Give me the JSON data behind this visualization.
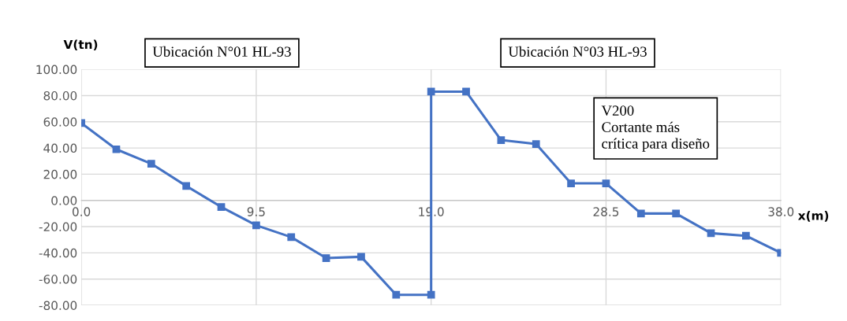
{
  "chart_data": {
    "type": "line",
    "xlabel": "x(m)",
    "ylabel": "V(tn)",
    "annotations": [
      "Ubicación N°01 HL-93",
      "Ubicación N°03 HL-93",
      "V200\nCortante más\ncrítica para diseño"
    ],
    "series": [
      {
        "color": "#4472c4",
        "x": [
          0,
          1.9,
          3.8,
          5.7,
          7.6,
          9.5,
          11.4,
          13.3,
          15.2,
          17.1,
          19.0,
          19.0,
          20.9,
          22.8,
          24.7,
          26.6,
          28.5,
          30.4,
          32.3,
          34.2,
          36.1,
          38.0
        ],
        "values": [
          59,
          39,
          28,
          11,
          -5,
          -19,
          -28,
          -44,
          -43,
          -72,
          -72,
          83,
          83,
          46,
          43,
          13,
          13,
          -10,
          -10,
          -25,
          -27,
          -40
        ]
      }
    ],
    "xlim": [
      0,
      38
    ],
    "xticks": [
      {
        "value": 0,
        "label": "0.0"
      },
      {
        "value": 9.5,
        "label": "9.5"
      },
      {
        "value": 19.0,
        "label": "19.0"
      },
      {
        "value": 28.5,
        "label": "28.5"
      },
      {
        "value": 38.0,
        "label": "38.0"
      }
    ],
    "ylim": [
      -80,
      100
    ],
    "yticks": [
      {
        "value": -80,
        "label": "-80.00"
      },
      {
        "value": -60,
        "label": "-60.00"
      },
      {
        "value": -40,
        "label": "-40.00"
      },
      {
        "value": -20,
        "label": "-20.00"
      },
      {
        "value": 0,
        "label": "0.00"
      },
      {
        "value": 20,
        "label": "20.00"
      },
      {
        "value": 40,
        "label": "40.00"
      },
      {
        "value": 60,
        "label": "60.00"
      },
      {
        "value": 80,
        "label": "80.00"
      },
      {
        "value": 100,
        "label": "100.00"
      }
    ],
    "grid": true,
    "marker": "square",
    "line_style": "solid"
  }
}
